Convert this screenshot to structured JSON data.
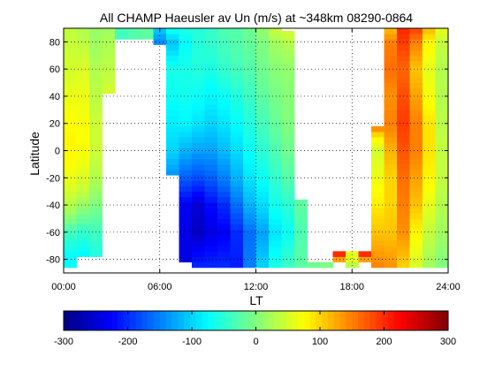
{
  "chart_data": {
    "type": "heatmap",
    "title": "All CHAMP Haeusler av Un (m/s) at ~348km 08290-0864",
    "xlabel": "LT",
    "ylabel": "Latitude",
    "xlim": [
      0,
      24
    ],
    "ylim": [
      -90,
      90
    ],
    "x_ticks": [
      "00:00",
      "06:00",
      "12:00",
      "18:00",
      "24:00"
    ],
    "x_tick_values": [
      0,
      6,
      12,
      18,
      24
    ],
    "y_ticks": [
      "-80",
      "-60",
      "-40",
      "-20",
      "0",
      "20",
      "40",
      "60",
      "80"
    ],
    "y_tick_values": [
      -80,
      -60,
      -40,
      -20,
      0,
      20,
      40,
      60,
      80
    ],
    "grid": true,
    "colorbar": {
      "ticks": [
        "-300",
        "-200",
        "-100",
        "0",
        "100",
        "200",
        "300"
      ],
      "tick_values": [
        -300,
        -200,
        -100,
        0,
        100,
        200,
        300
      ],
      "range": [
        -300,
        300
      ],
      "colormap": "jet",
      "placement": "bottom"
    },
    "lt_bin_width_hours": 0.8,
    "lat_bin_height_deg": 4,
    "columns": [
      {
        "lt": 0.4,
        "lat_min": -86,
        "lat_max": 90,
        "anchors": [
          [
            -86,
            -75
          ],
          [
            -76,
            -70
          ],
          [
            -68,
            -55
          ],
          [
            -60,
            -35
          ],
          [
            -45,
            20
          ],
          [
            -30,
            50
          ],
          [
            -10,
            75
          ],
          [
            10,
            80
          ],
          [
            30,
            70
          ],
          [
            50,
            55
          ],
          [
            70,
            45
          ],
          [
            88,
            40
          ]
        ]
      },
      {
        "lt": 1.2,
        "lat_min": -78,
        "lat_max": 90,
        "anchors": [
          [
            -78,
            -80
          ],
          [
            -70,
            -65
          ],
          [
            -60,
            -45
          ],
          [
            -45,
            0
          ],
          [
            -30,
            40
          ],
          [
            -10,
            65
          ],
          [
            10,
            75
          ],
          [
            30,
            68
          ],
          [
            50,
            60
          ],
          [
            70,
            45
          ],
          [
            88,
            30
          ]
        ]
      },
      {
        "lt": 2.0,
        "lat_min": -78,
        "lat_max": 90,
        "anchors": [
          [
            -78,
            -60
          ],
          [
            -70,
            -50
          ],
          [
            -55,
            -30
          ],
          [
            -40,
            0
          ],
          [
            -20,
            30
          ],
          [
            0,
            45
          ],
          [
            20,
            45
          ],
          [
            40,
            35
          ],
          [
            60,
            30
          ],
          [
            75,
            20
          ],
          [
            88,
            15
          ]
        ]
      },
      {
        "lt": 2.8,
        "lat_min": 42,
        "lat_max": 90,
        "anchors": [
          [
            42,
            50
          ],
          [
            60,
            35
          ],
          [
            75,
            30
          ],
          [
            88,
            20
          ]
        ]
      },
      {
        "lt": 3.6,
        "lat_min": 82,
        "lat_max": 90,
        "anchors": [
          [
            82,
            -40
          ],
          [
            88,
            -35
          ]
        ]
      },
      {
        "lt": 4.4,
        "lat_min": 82,
        "lat_max": 90,
        "anchors": [
          [
            82,
            -30
          ],
          [
            88,
            -25
          ]
        ]
      },
      {
        "lt": 5.2,
        "lat_min": 82,
        "lat_max": 90,
        "anchors": [
          [
            82,
            -20
          ],
          [
            88,
            -20
          ]
        ]
      },
      {
        "lt": 6.0,
        "lat_min": 78,
        "lat_max": 90,
        "anchors": [
          [
            78,
            -150
          ],
          [
            88,
            -110
          ]
        ]
      },
      {
        "lt": 6.8,
        "lat_min": -18,
        "lat_max": 90,
        "anchors": [
          [
            -18,
            -140
          ],
          [
            -10,
            -120
          ],
          [
            0,
            -100
          ],
          [
            20,
            -85
          ],
          [
            40,
            -70
          ],
          [
            60,
            -60
          ],
          [
            80,
            -110
          ],
          [
            88,
            -70
          ]
        ]
      },
      {
        "lt": 7.6,
        "lat_min": -82,
        "lat_max": 90,
        "anchors": [
          [
            -82,
            -240
          ],
          [
            -60,
            -240
          ],
          [
            -40,
            -230
          ],
          [
            -20,
            -170
          ],
          [
            0,
            -120
          ],
          [
            20,
            -80
          ],
          [
            40,
            -65
          ],
          [
            60,
            -60
          ],
          [
            80,
            -75
          ],
          [
            88,
            -60
          ]
        ]
      },
      {
        "lt": 8.4,
        "lat_min": -86,
        "lat_max": 90,
        "anchors": [
          [
            -86,
            -200
          ],
          [
            -60,
            -260
          ],
          [
            -40,
            -250
          ],
          [
            -20,
            -180
          ],
          [
            0,
            -130
          ],
          [
            20,
            -90
          ],
          [
            40,
            -70
          ],
          [
            60,
            -55
          ],
          [
            80,
            -55
          ],
          [
            88,
            -55
          ]
        ]
      },
      {
        "lt": 9.2,
        "lat_min": -86,
        "lat_max": 90,
        "anchors": [
          [
            -86,
            -200
          ],
          [
            -60,
            -240
          ],
          [
            -40,
            -220
          ],
          [
            -20,
            -170
          ],
          [
            0,
            -130
          ],
          [
            20,
            -100
          ],
          [
            40,
            -80
          ],
          [
            60,
            -60
          ],
          [
            80,
            -45
          ],
          [
            88,
            -45
          ]
        ]
      },
      {
        "lt": 10.0,
        "lat_min": -86,
        "lat_max": 90,
        "anchors": [
          [
            -86,
            -200
          ],
          [
            -60,
            -230
          ],
          [
            -40,
            -200
          ],
          [
            -20,
            -150
          ],
          [
            0,
            -115
          ],
          [
            20,
            -90
          ],
          [
            40,
            -70
          ],
          [
            60,
            -45
          ],
          [
            80,
            -35
          ],
          [
            88,
            -30
          ]
        ]
      },
      {
        "lt": 10.8,
        "lat_min": -86,
        "lat_max": 90,
        "anchors": [
          [
            -86,
            -210
          ],
          [
            -60,
            -200
          ],
          [
            -40,
            -160
          ],
          [
            -20,
            -120
          ],
          [
            0,
            -95
          ],
          [
            20,
            -75
          ],
          [
            40,
            -55
          ],
          [
            60,
            -35
          ],
          [
            80,
            -25
          ],
          [
            88,
            -25
          ]
        ]
      },
      {
        "lt": 11.6,
        "lat_min": -86,
        "lat_max": 90,
        "anchors": [
          [
            -86,
            -150
          ],
          [
            -60,
            -160
          ],
          [
            -40,
            -120
          ],
          [
            -20,
            -90
          ],
          [
            0,
            -70
          ],
          [
            20,
            -55
          ],
          [
            40,
            -40
          ],
          [
            60,
            -25
          ],
          [
            80,
            -15
          ],
          [
            88,
            -10
          ]
        ]
      },
      {
        "lt": 12.4,
        "lat_min": -86,
        "lat_max": 90,
        "anchors": [
          [
            -86,
            -100
          ],
          [
            -60,
            -130
          ],
          [
            -40,
            -95
          ],
          [
            -20,
            -70
          ],
          [
            0,
            -50
          ],
          [
            20,
            -35
          ],
          [
            40,
            -20
          ],
          [
            60,
            -10
          ],
          [
            80,
            0
          ],
          [
            88,
            10
          ]
        ]
      },
      {
        "lt": 13.2,
        "lat_min": -86,
        "lat_max": 90,
        "anchors": [
          [
            -86,
            -60
          ],
          [
            -60,
            -90
          ],
          [
            -40,
            -65
          ],
          [
            -20,
            -45
          ],
          [
            0,
            -30
          ],
          [
            20,
            -15
          ],
          [
            40,
            -5
          ],
          [
            60,
            5
          ],
          [
            80,
            20
          ],
          [
            88,
            40
          ]
        ]
      },
      {
        "lt": 14.0,
        "lat_min": -86,
        "lat_max": 88,
        "anchors": [
          [
            -86,
            -40
          ],
          [
            -60,
            -70
          ],
          [
            -40,
            -50
          ],
          [
            -20,
            -25
          ],
          [
            0,
            -10
          ],
          [
            20,
            0
          ],
          [
            40,
            5
          ],
          [
            60,
            10
          ],
          [
            80,
            30
          ],
          [
            88,
            50
          ]
        ]
      },
      {
        "lt": 14.8,
        "lat_min": -86,
        "lat_max": -36,
        "anchors": [
          [
            -86,
            -20
          ],
          [
            -60,
            -30
          ],
          [
            -40,
            -20
          ]
        ]
      },
      {
        "lt": 15.6,
        "lat_min": -86,
        "lat_max": -82,
        "anchors": [
          [
            -86,
            -10
          ],
          [
            -82,
            -10
          ]
        ]
      },
      {
        "lt": 16.4,
        "lat_min": -86,
        "lat_max": -82,
        "anchors": [
          [
            -86,
            -5
          ],
          [
            -82,
            0
          ]
        ]
      },
      {
        "lt": 17.2,
        "lat_min": -82,
        "lat_max": -74,
        "anchors": [
          [
            -82,
            60
          ],
          [
            -78,
            200
          ]
        ]
      },
      {
        "lt": 18.0,
        "lat_min": -86,
        "lat_max": -74,
        "anchors": [
          [
            -86,
            20
          ],
          [
            -80,
            60
          ]
        ]
      },
      {
        "lt": 18.8,
        "lat_min": -82,
        "lat_max": -74,
        "anchors": [
          [
            -82,
            60
          ],
          [
            -78,
            200
          ]
        ]
      },
      {
        "lt": 19.6,
        "lat_min": -86,
        "lat_max": 18,
        "anchors": [
          [
            -86,
            150
          ],
          [
            -60,
            110
          ],
          [
            -40,
            85
          ],
          [
            -20,
            65
          ],
          [
            0,
            50
          ],
          [
            10,
            80
          ],
          [
            16,
            140
          ]
        ]
      },
      {
        "lt": 20.4,
        "lat_min": -86,
        "lat_max": 90,
        "anchors": [
          [
            -86,
            140
          ],
          [
            -60,
            110
          ],
          [
            -40,
            100
          ],
          [
            -20,
            100
          ],
          [
            0,
            120
          ],
          [
            20,
            150
          ],
          [
            40,
            140
          ],
          [
            60,
            160
          ],
          [
            80,
            150
          ],
          [
            88,
            120
          ]
        ]
      },
      {
        "lt": 21.2,
        "lat_min": -86,
        "lat_max": 90,
        "anchors": [
          [
            -86,
            100
          ],
          [
            -60,
            140
          ],
          [
            -40,
            150
          ],
          [
            -20,
            160
          ],
          [
            0,
            175
          ],
          [
            20,
            190
          ],
          [
            40,
            180
          ],
          [
            60,
            165
          ],
          [
            80,
            190
          ],
          [
            88,
            200
          ]
        ]
      },
      {
        "lt": 22.0,
        "lat_min": -86,
        "lat_max": 90,
        "anchors": [
          [
            -86,
            50
          ],
          [
            -60,
            80
          ],
          [
            -40,
            110
          ],
          [
            -20,
            130
          ],
          [
            0,
            150
          ],
          [
            20,
            150
          ],
          [
            40,
            130
          ],
          [
            60,
            110
          ],
          [
            80,
            150
          ],
          [
            88,
            180
          ]
        ]
      },
      {
        "lt": 22.8,
        "lat_min": -86,
        "lat_max": 90,
        "anchors": [
          [
            -86,
            20
          ],
          [
            -60,
            40
          ],
          [
            -40,
            60
          ],
          [
            -20,
            80
          ],
          [
            0,
            90
          ],
          [
            20,
            90
          ],
          [
            40,
            70
          ],
          [
            60,
            60
          ],
          [
            80,
            80
          ],
          [
            88,
            110
          ]
        ]
      },
      {
        "lt": 23.6,
        "lat_min": -86,
        "lat_max": 90,
        "anchors": [
          [
            -86,
            0
          ],
          [
            -60,
            20
          ],
          [
            -40,
            30
          ],
          [
            -20,
            40
          ],
          [
            0,
            40
          ],
          [
            20,
            35
          ],
          [
            40,
            30
          ],
          [
            60,
            30
          ],
          [
            80,
            40
          ],
          [
            88,
            60
          ]
        ]
      }
    ]
  }
}
